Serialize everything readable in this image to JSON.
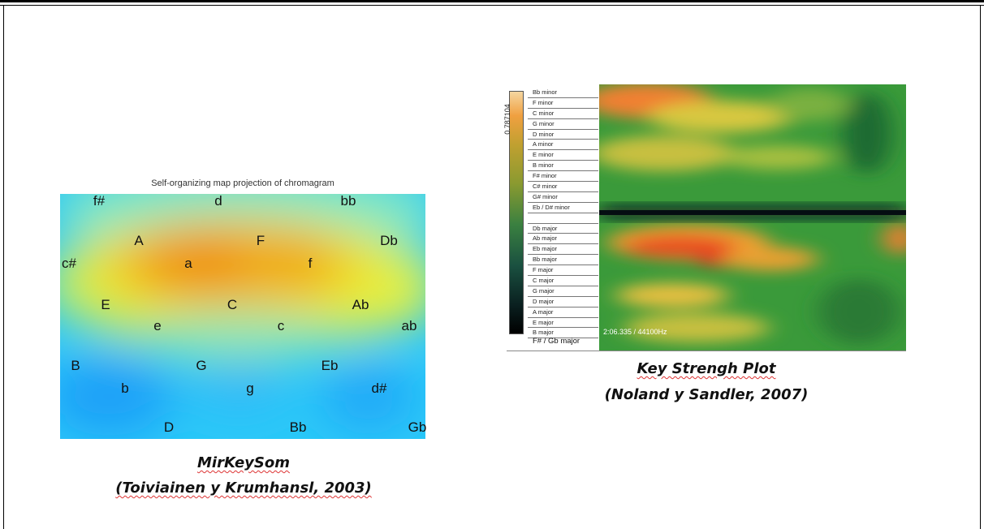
{
  "left_figure": {
    "caption_line1": "MirKeySom",
    "caption_line2": "(Toiviainen y Krumhansl, 2003)"
  },
  "right_figure": {
    "caption_line1": "Key Strengh Plot",
    "caption_line2": "(Noland y Sandler, 2007)"
  },
  "chart_data": [
    {
      "type": "heatmap",
      "title": "Self-organizing map projection of chromagram",
      "labels": [
        "f#",
        "d",
        "bb",
        "A",
        "F",
        "Db",
        "c#",
        "a",
        "f",
        "E",
        "C",
        "Ab",
        "e",
        "c",
        "ab",
        "B",
        "G",
        "Eb",
        "b",
        "g",
        "d#",
        "D",
        "Bb",
        "Gb"
      ],
      "colormap": [
        "#1ab0ff",
        "#3fe0f0",
        "#b8f070",
        "#f0f020",
        "#f0b020",
        "#f08a10"
      ]
    },
    {
      "type": "heatmap",
      "colorbar_max": "0.787104",
      "rows": [
        "Bb minor",
        "F minor",
        "C minor",
        "G minor",
        "D minor",
        "A minor",
        "E minor",
        "B minor",
        "F# minor",
        "C# minor",
        "G# minor",
        "Eb / D# minor",
        "",
        "Db major",
        "Ab major",
        "Eb major",
        "Bb major",
        "F major",
        "C major",
        "G major",
        "D major",
        "A major",
        "E major",
        "B major"
      ],
      "bottom_row": "F# / Gb major",
      "time_readout": "2:06.335 / 44100Hz",
      "colormap": [
        "#1a6a30",
        "#3a9a3a",
        "#8ac040",
        "#e0d040",
        "#f08a30",
        "#e83a20"
      ]
    }
  ]
}
